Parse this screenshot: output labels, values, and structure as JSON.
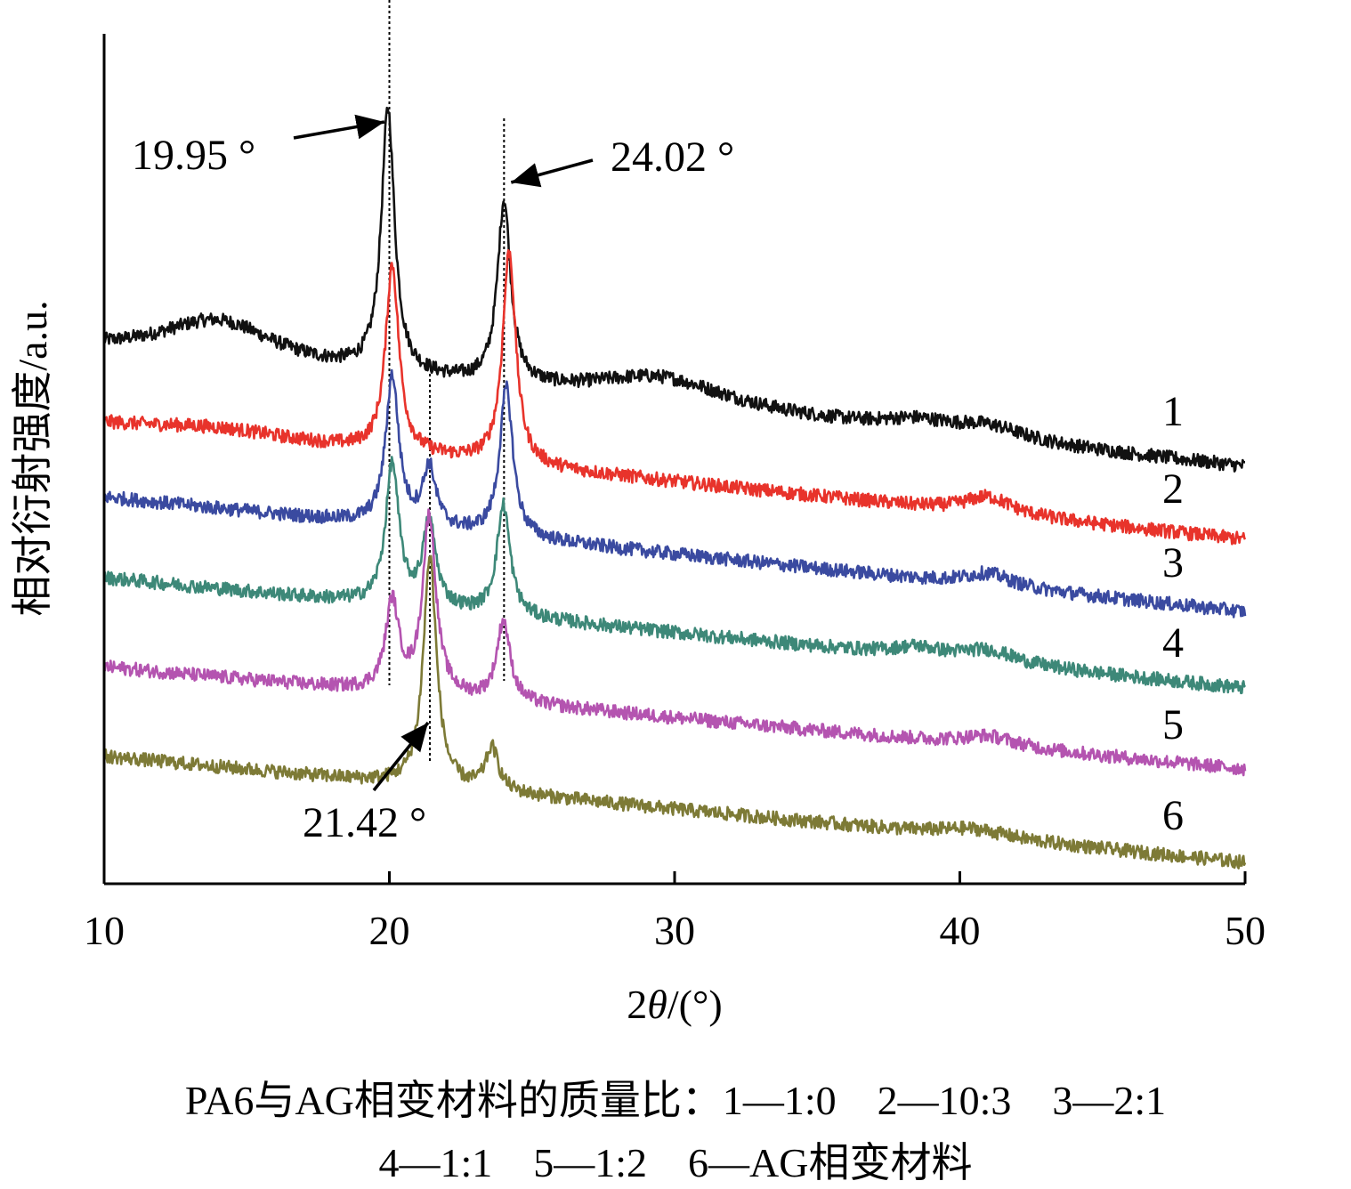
{
  "chart_data": {
    "type": "line",
    "xlabel_prefix": "2",
    "xlabel_symbol": "θ",
    "xlabel_suffix": "/(°)",
    "ylabel": "相对衍射强度/a.u.",
    "xlim": [
      10,
      50
    ],
    "xticks": [
      "10",
      "20",
      "30",
      "40",
      "50"
    ],
    "grid": false,
    "series": [
      {
        "label": "1",
        "color": "#111111",
        "baseline_start": 0.625,
        "baseline_end": 0.49,
        "peaks": [
          [
            19.95,
            0.31
          ],
          [
            24.02,
            0.215
          ],
          [
            14.0,
            0.05,
            2.5
          ],
          [
            29.5,
            0.035,
            3.0
          ],
          [
            38.5,
            0.012,
            1.5
          ],
          [
            41.0,
            0.015,
            1.5
          ]
        ]
      },
      {
        "label": "2",
        "color": "#e8332b",
        "baseline_start": 0.54,
        "baseline_end": 0.405,
        "peaks": [
          [
            20.1,
            0.22
          ],
          [
            24.2,
            0.25
          ],
          [
            14.0,
            0.01,
            3.0
          ],
          [
            41.0,
            0.02,
            1.0
          ]
        ]
      },
      {
        "label": "3",
        "color": "#3a4aa0",
        "baseline_start": 0.455,
        "baseline_end": 0.32,
        "peaks": [
          [
            20.1,
            0.175
          ],
          [
            21.4,
            0.07
          ],
          [
            24.1,
            0.175
          ],
          [
            41.0,
            0.015,
            1.0
          ]
        ]
      },
      {
        "label": "4",
        "color": "#3d8878",
        "baseline_start": 0.36,
        "baseline_end": 0.23,
        "peaks": [
          [
            20.1,
            0.165
          ],
          [
            21.4,
            0.1
          ],
          [
            24.0,
            0.13
          ],
          [
            38.5,
            0.01,
            1.0
          ],
          [
            41.0,
            0.015,
            1.2
          ]
        ]
      },
      {
        "label": "5",
        "color": "#b454b0",
        "baseline_start": 0.255,
        "baseline_end": 0.135,
        "peaks": [
          [
            20.1,
            0.105
          ],
          [
            21.4,
            0.21
          ],
          [
            24.0,
            0.095
          ],
          [
            41.0,
            0.012,
            1.2
          ]
        ]
      },
      {
        "label": "6",
        "color": "#7d7a36",
        "baseline_start": 0.15,
        "baseline_end": 0.025,
        "peaks": [
          [
            21.42,
            0.27
          ],
          [
            23.6,
            0.05
          ],
          [
            40.5,
            0.01,
            1.5
          ]
        ]
      }
    ],
    "annotations": [
      {
        "text": "19.95 °",
        "x": 19.95
      },
      {
        "text": "24.02 °",
        "x": 24.02
      },
      {
        "text": "21.42 °",
        "x": 21.42
      }
    ],
    "reference_lines_x": [
      20.0,
      21.42,
      24.02
    ]
  },
  "caption": {
    "line1": "PA6与AG相变材料的质量比：1—1:0　2—10:3　3—2:1",
    "line2": "4—1:1　5—1:2　6—AG相变材料"
  }
}
